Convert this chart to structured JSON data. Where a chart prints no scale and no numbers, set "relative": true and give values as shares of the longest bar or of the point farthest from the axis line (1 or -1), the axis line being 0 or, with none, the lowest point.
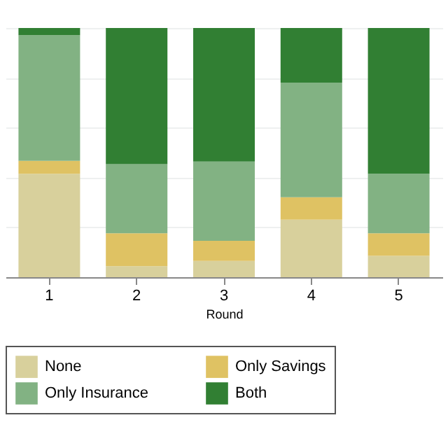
{
  "chart_data": {
    "type": "bar",
    "stacked": true,
    "relative": true,
    "xlabel": "Round",
    "categories": [
      "1",
      "2",
      "3",
      "4",
      "5"
    ],
    "series": [
      {
        "name": "None",
        "color": "#d8d09c",
        "values": [
          0.415,
          0.044,
          0.065,
          0.231,
          0.086
        ]
      },
      {
        "name": "Only Savings",
        "color": "#dfc263",
        "values": [
          0.052,
          0.132,
          0.081,
          0.09,
          0.09
        ]
      },
      {
        "name": "Only Insurance",
        "color": "#82b283",
        "values": [
          0.504,
          0.278,
          0.318,
          0.46,
          0.239
        ]
      },
      {
        "name": "Both",
        "color": "#317f33",
        "values": [
          0.029,
          0.546,
          0.536,
          0.219,
          0.585
        ]
      }
    ],
    "grid": "y",
    "legend": "bottom"
  }
}
